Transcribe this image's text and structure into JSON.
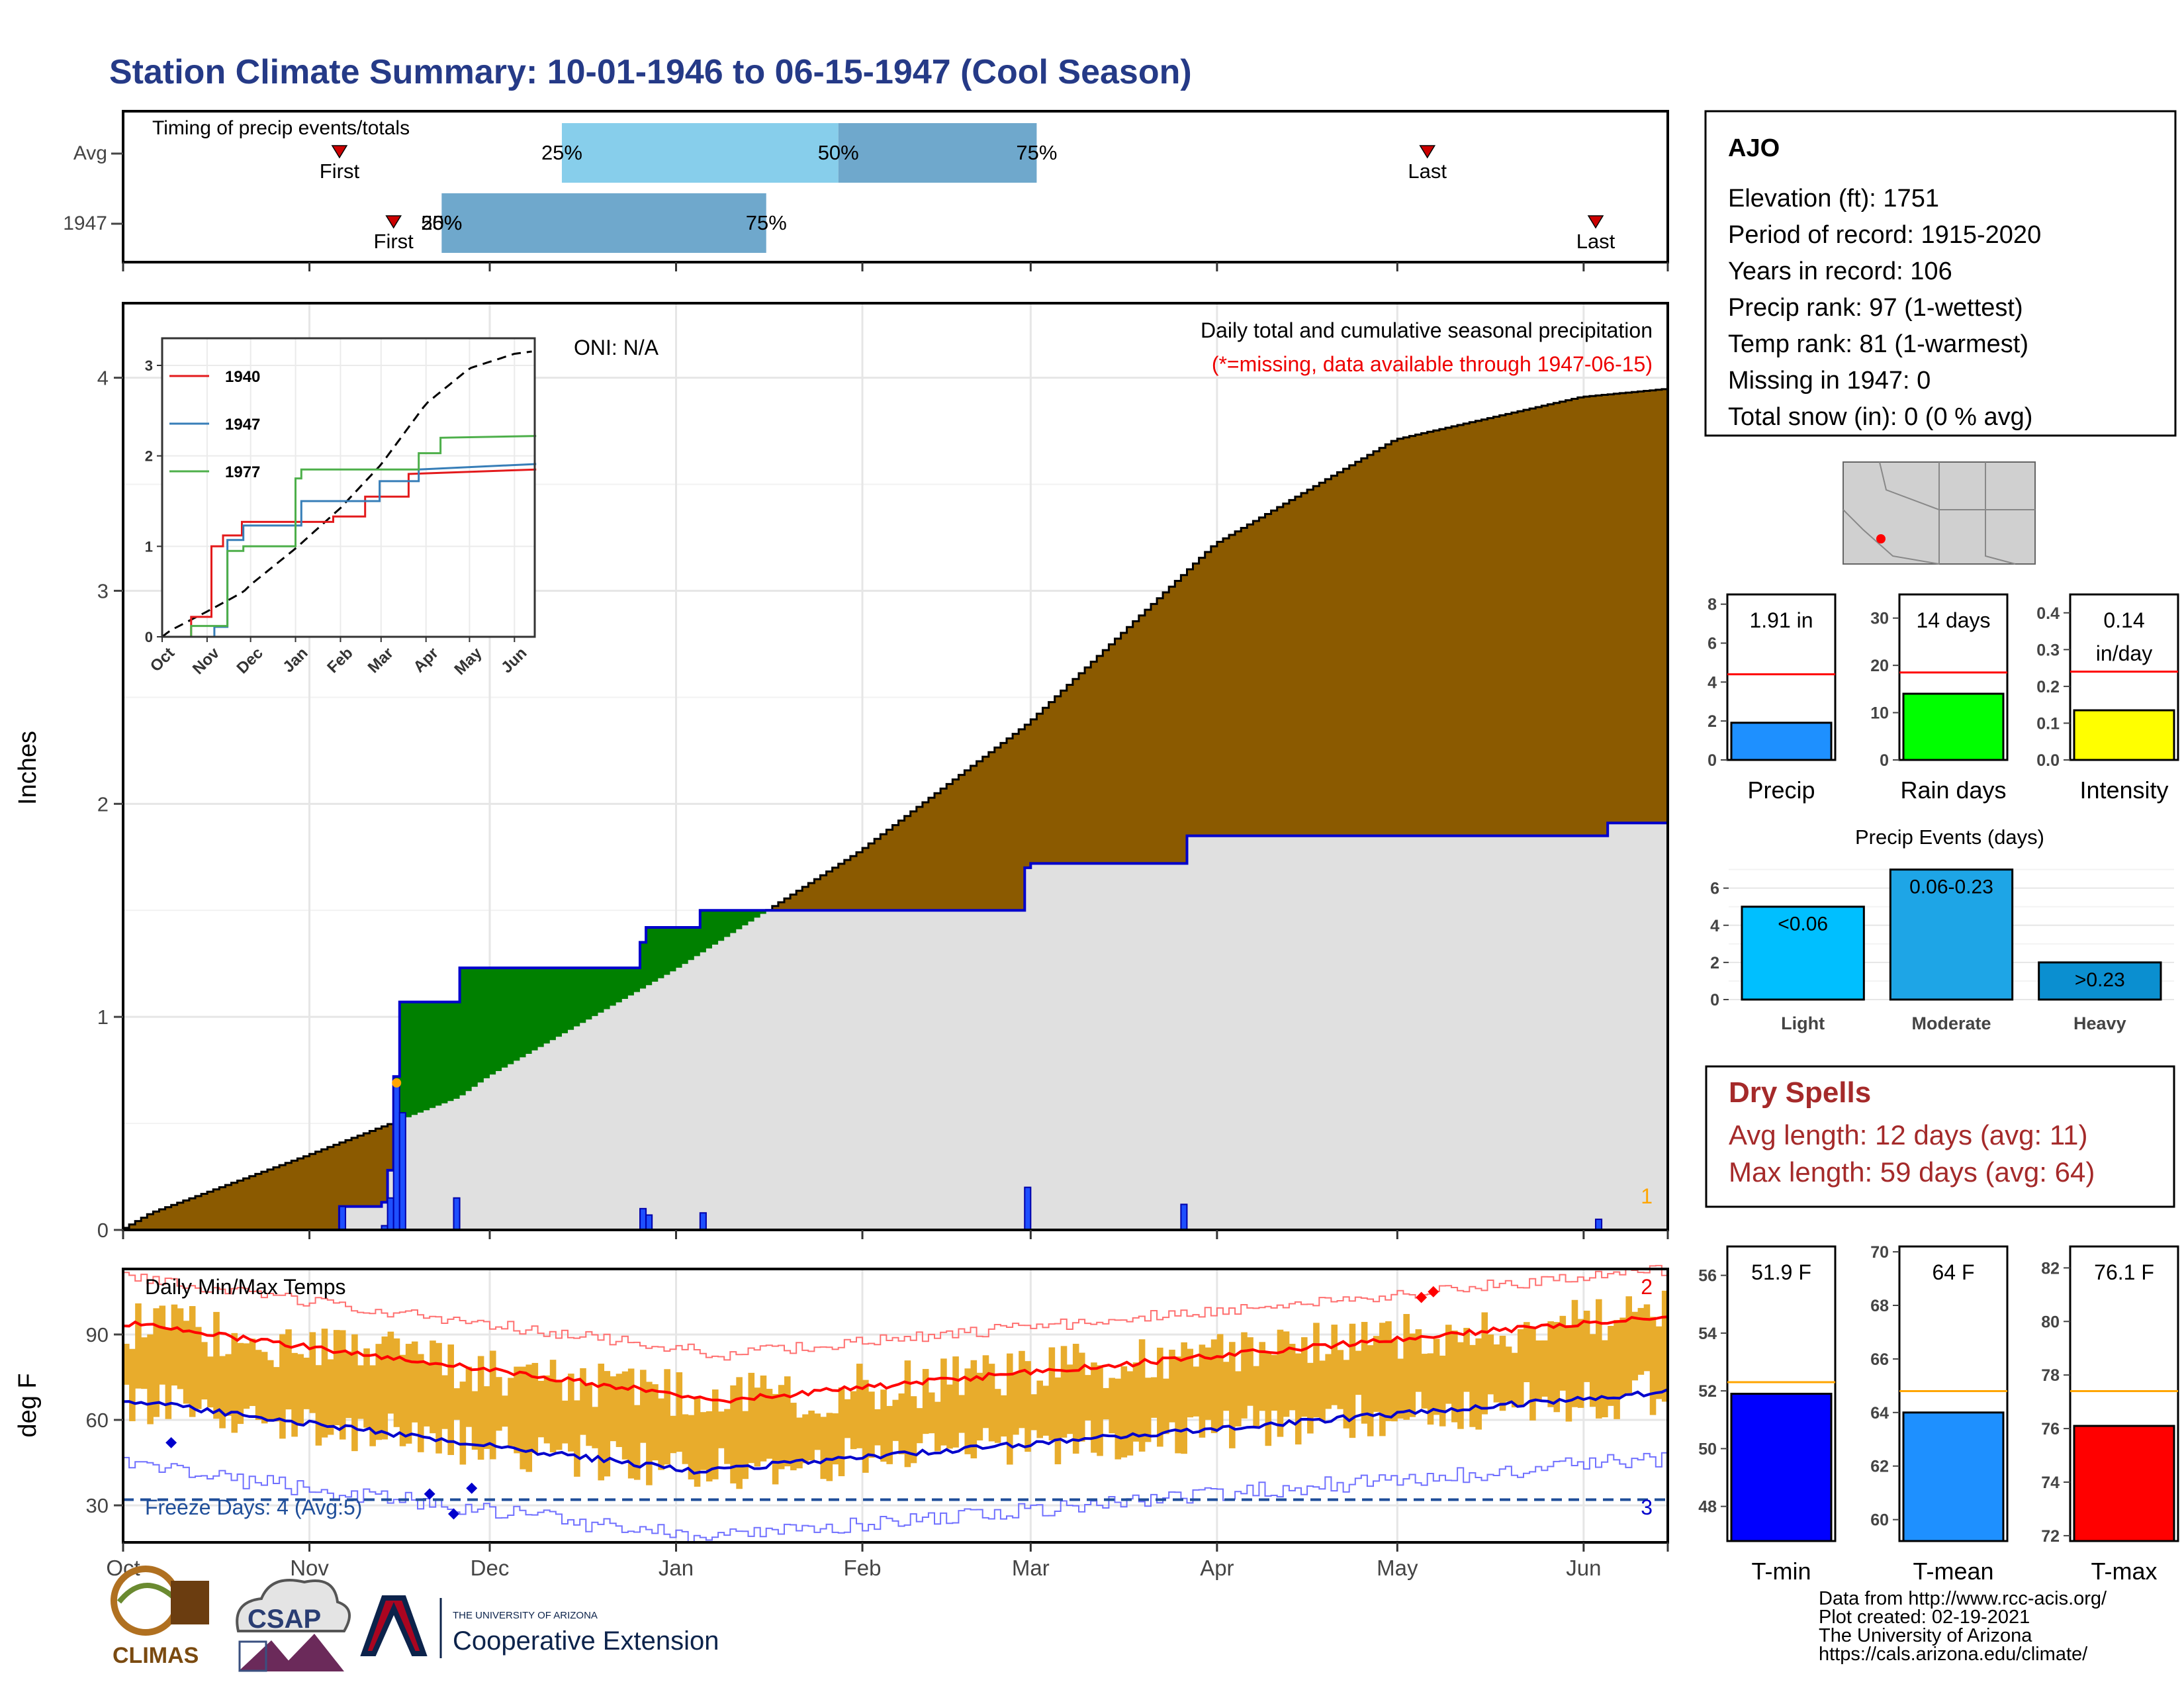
{
  "title": "Station Climate Summary: 10-01-1946 to 06-15-1947 (Cool Season)",
  "months": [
    "Oct",
    "Nov",
    "Dec",
    "Jan",
    "Feb",
    "Mar",
    "Apr",
    "May",
    "Jun"
  ],
  "timing": {
    "label": "Timing of precip events/totals",
    "rows": [
      {
        "name": "Avg",
        "first_date": "1946-11-06",
        "last_date": "1947-05-06",
        "p25_date": "1946-12-13",
        "p50_date": "1947-01-28",
        "p75_date": "1947-03-02"
      },
      {
        "name": "1947",
        "first_date": "1946-11-15",
        "last_date": "1947-06-03",
        "p25_date": "1946-11-23",
        "p50_date": "1946-11-23",
        "p75_date": "1947-01-16"
      }
    ],
    "first_label": "First",
    "last_label": "Last",
    "p25_label": "25%",
    "p50_label": "50%",
    "p75_label": "75%",
    "overlap_label": "50%"
  },
  "precip": {
    "ylabel": "Inches",
    "oni": "ONI: N/A",
    "caption": "Daily total and cumulative seasonal precipitation",
    "missing_note": "(*=missing, data available through 1947-06-15)",
    "corner_num": "1",
    "yticks": [
      0,
      1,
      2,
      3,
      4
    ]
  },
  "inset": {
    "legend": [
      {
        "name": "1940",
        "color": "#e31a1c"
      },
      {
        "name": "1947",
        "color": "#377eb8"
      },
      {
        "name": "1977",
        "color": "#4daf4a"
      }
    ],
    "yticks": [
      0,
      1,
      2,
      3
    ],
    "months": [
      "Oct",
      "Nov",
      "Dec",
      "Jan",
      "Feb",
      "Mar",
      "Apr",
      "May",
      "Jun"
    ]
  },
  "temps": {
    "ylabel": "deg F",
    "label": "Daily Min/Max Temps",
    "freeze": "Freeze Days: 4 (Avg:5)",
    "corner_top": "2",
    "corner_bottom": "3",
    "yticks": [
      30,
      60,
      90
    ]
  },
  "station": {
    "name": "AJO",
    "lines": [
      "Elevation (ft): 1751",
      "Period of record: 1915-2020",
      "Years in record: 106",
      "Precip rank: 97 (1-wettest)",
      "Temp rank: 81 (1-warmest)",
      "Missing in 1947: 0",
      "Total snow (in): 0 (0 % avg)"
    ]
  },
  "mini_precip": {
    "value_label": "1.91 in",
    "xlabel": "Precip",
    "value": 1.91,
    "avg": 4.4,
    "yticks": [
      0,
      2,
      4,
      6,
      8
    ],
    "ymax": 8.5,
    "color": "#1e90ff"
  },
  "mini_raindays": {
    "value_label": "14 days",
    "xlabel": "Rain days",
    "value": 14,
    "avg": 18.5,
    "yticks": [
      0,
      10,
      20,
      30
    ],
    "ymax": 35,
    "color": "#00ff00"
  },
  "mini_intensity": {
    "value_label1": "0.14",
    "value_label2": "in/day",
    "xlabel": "Intensity",
    "value": 0.135,
    "avg": 0.24,
    "yticks": [
      "0.0",
      "0.1",
      "0.2",
      "0.3",
      "0.4"
    ],
    "ymax": 0.45,
    "color": "#ffff00"
  },
  "events": {
    "title": "Precip Events (days)",
    "yticks": [
      0,
      2,
      4,
      6
    ],
    "bars": [
      {
        "name": "Light",
        "label": "<0.06",
        "value": 5,
        "color": "#00bfff"
      },
      {
        "name": "Moderate",
        "label": "0.06-0.23",
        "value": 7,
        "color": "#1ea5e6"
      },
      {
        "name": "Heavy",
        "label": ">0.23",
        "value": 2,
        "color": "#0b8fd0"
      }
    ]
  },
  "dry_spells": {
    "title": "Dry Spells",
    "line1": "Avg length: 12 days (avg: 11)",
    "line2": "Max length: 59 days (avg: 64)"
  },
  "tmin": {
    "value_label": "51.9 F",
    "xlabel": "T-min",
    "value": 51.9,
    "avg": 52.3,
    "yticks": [
      48,
      50,
      52,
      54,
      56
    ],
    "ymin": 46.8,
    "ymax": 57,
    "color": "#0000ff"
  },
  "tmean": {
    "value_label": "64 F",
    "xlabel": "T-mean",
    "value": 64,
    "avg": 64.8,
    "yticks": [
      60,
      62,
      64,
      66,
      68,
      70
    ],
    "ymin": 59.2,
    "ymax": 70.2,
    "color": "#1e90ff"
  },
  "tmax": {
    "value_label": "76.1 F",
    "xlabel": "T-max",
    "value": 76.1,
    "avg": 77.4,
    "yticks": [
      72,
      74,
      76,
      78,
      80,
      82
    ],
    "ymin": 71.8,
    "ymax": 82.8,
    "color": "#ff0000"
  },
  "credits": [
    "Data from http://www.rcc-acis.org/",
    "Plot created: 02-19-2021",
    "The University of Arizona",
    "https://cals.arizona.edu/climate/"
  ],
  "logos": {
    "climas": "CLIMAS",
    "csap": "CSAP",
    "ua_small": "THE UNIVERSITY OF ARIZONA",
    "ua_large": "Cooperative Extension"
  },
  "chart_data": [
    {
      "type": "area",
      "title": "Daily total and cumulative seasonal precipitation",
      "ylabel": "Inches",
      "ylim": [
        0,
        4.3
      ],
      "series": [
        {
          "name": "cumulative",
          "x": [
            "1946-10-01",
            "1946-11-15",
            "1946-11-22",
            "1946-12-05",
            "1947-01-05",
            "1947-03-01",
            "1947-06-15"
          ],
          "values": [
            0,
            0.72,
            1.07,
            1.23,
            1.5,
            1.72,
            1.91
          ]
        }
      ],
      "daily_events": [
        {
          "x": "1946-11-06",
          "value": 0.11
        },
        {
          "x": "1946-11-13",
          "value": 0.02
        },
        {
          "x": "1946-11-14",
          "value": 0.15
        },
        {
          "x": "1946-11-15",
          "value": 0.7
        },
        {
          "x": "1946-11-16",
          "value": 0.55
        },
        {
          "x": "1946-11-25",
          "value": 0.15
        },
        {
          "x": "1946-12-26",
          "value": 0.1
        },
        {
          "x": "1946-12-27",
          "value": 0.07
        },
        {
          "x": "1947-01-05",
          "value": 0.08
        },
        {
          "x": "1947-02-28",
          "value": 0.2
        },
        {
          "x": "1947-03-26",
          "value": 0.12
        },
        {
          "x": "1947-06-03",
          "value": 0.05
        }
      ]
    },
    {
      "type": "line",
      "title": "Daily Min/Max Temps",
      "ylabel": "deg F",
      "ylim": [
        17,
        113
      ],
      "freeze_line": 32
    },
    {
      "type": "bar",
      "title": "Precip Events (days)",
      "categories": [
        "Light",
        "Moderate",
        "Heavy"
      ],
      "values": [
        5,
        7,
        2
      ]
    }
  ]
}
